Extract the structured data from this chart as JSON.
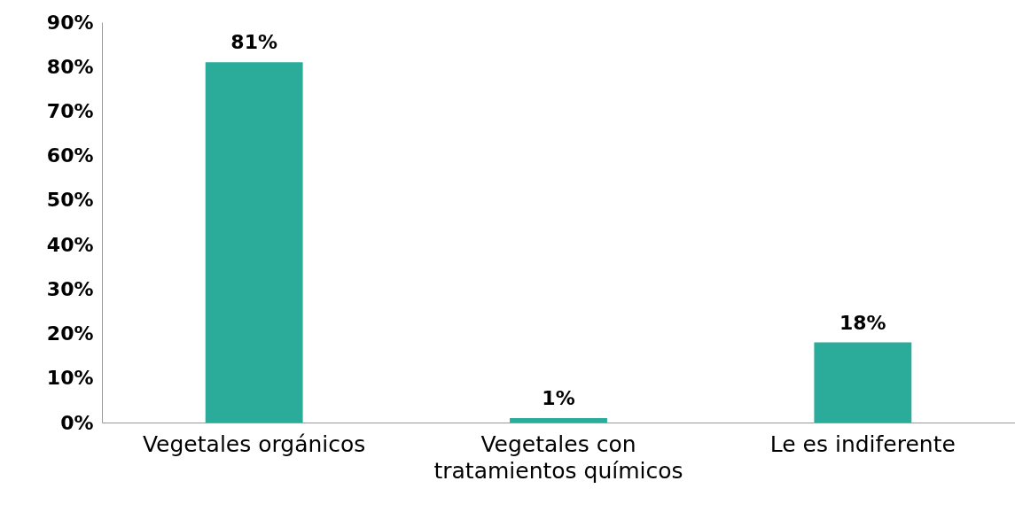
{
  "chart_data": {
    "type": "bar",
    "categories": [
      "Vegetales orgánicos",
      "Vegetales con tratamientos químicos",
      "Le es indiferente"
    ],
    "values": [
      81,
      1,
      18
    ],
    "value_labels": [
      "81%",
      "1%",
      "18%"
    ],
    "color": "#2bac9b",
    "ylim": [
      0,
      90
    ],
    "yticks": [
      {
        "value": 0,
        "label": "0%"
      },
      {
        "value": 10,
        "label": "10%"
      },
      {
        "value": 20,
        "label": "20%"
      },
      {
        "value": 30,
        "label": "30%"
      },
      {
        "value": 40,
        "label": "40%"
      },
      {
        "value": 50,
        "label": "50%"
      },
      {
        "value": 60,
        "label": "60%"
      },
      {
        "value": 70,
        "label": "70%"
      },
      {
        "value": 80,
        "label": "80%"
      },
      {
        "value": 90,
        "label": "90%"
      }
    ],
    "grid": false
  }
}
